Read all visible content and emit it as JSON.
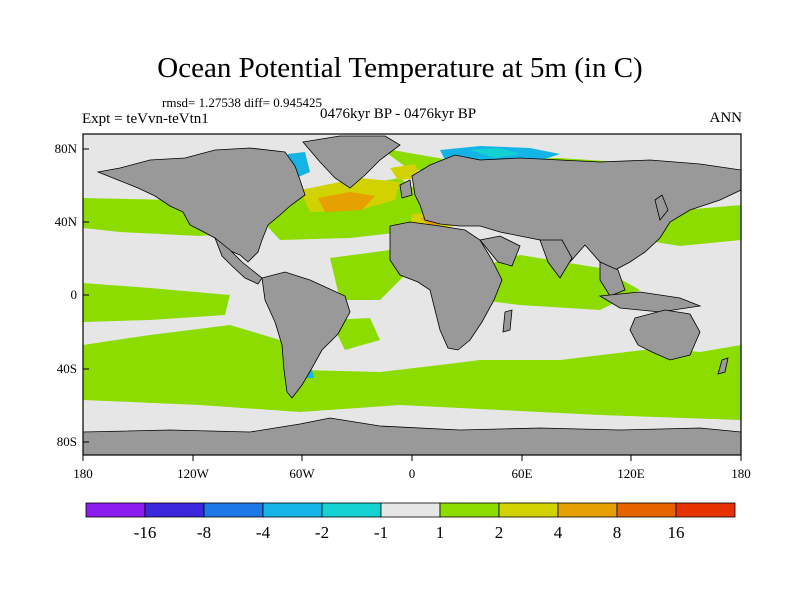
{
  "title": "Ocean Potential Temperature at 5m (in C)",
  "stats": "rmsd= 1.27538 diff= 0.945425",
  "experiment": "Expt = teVvn-teVtn1",
  "period": "0476kyr BP - 0476kyr BP",
  "season": "ANN",
  "lat_ticks": [
    "80N",
    "40N",
    "0",
    "40S",
    "80S"
  ],
  "lon_ticks": [
    "180",
    "120W",
    "60W",
    "0",
    "60E",
    "120E",
    "180"
  ],
  "colorbar": {
    "colors": [
      "#8c1cf0",
      "#3c28dc",
      "#1e78e6",
      "#14b4e6",
      "#14d2d2",
      "#e6e6e6",
      "#8cdc00",
      "#d2d200",
      "#e6a000",
      "#e66400",
      "#e63200"
    ],
    "labels": [
      "-16",
      "-8",
      "-4",
      "-2",
      "-1",
      "1",
      "2",
      "4",
      "8",
      "16"
    ]
  },
  "colors": {
    "land": "#999999",
    "ocean_neutral": "#e6e6e6",
    "warm_small": "#8cdc00",
    "warm_mid": "#d2d200",
    "warm_high": "#e6a000",
    "cool_small": "#14d2d2",
    "cool_mid": "#14b4e6",
    "cool_high": "#1e78e6"
  }
}
